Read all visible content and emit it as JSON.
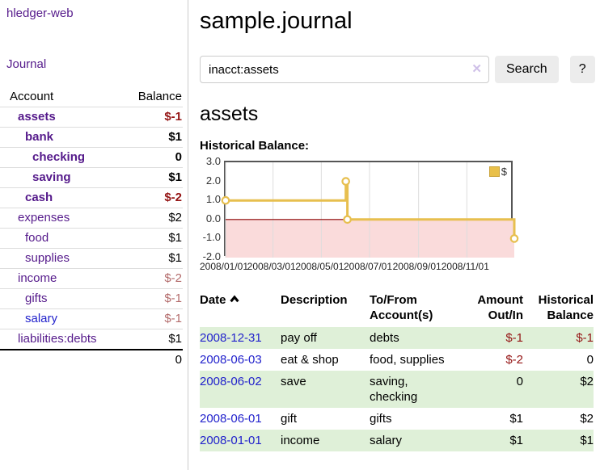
{
  "brand": "hledger-web",
  "nav": {
    "journal": "Journal"
  },
  "sidebar": {
    "header": {
      "account": "Account",
      "balance": "Balance"
    },
    "accounts": [
      {
        "name": "assets",
        "balance": "$-1"
      },
      {
        "name": "bank",
        "balance": "$1"
      },
      {
        "name": "checking",
        "balance": "0"
      },
      {
        "name": "saving",
        "balance": "$1"
      },
      {
        "name": "cash",
        "balance": "$-2"
      },
      {
        "name": "expenses",
        "balance": "$2"
      },
      {
        "name": "food",
        "balance": "$1"
      },
      {
        "name": "supplies",
        "balance": "$1"
      },
      {
        "name": "income",
        "balance": "$-2"
      },
      {
        "name": "gifts",
        "balance": "$-1"
      },
      {
        "name": "salary",
        "balance": "$-1"
      },
      {
        "name": "liabilities:debts",
        "balance": "$1"
      }
    ],
    "total": "0"
  },
  "header": {
    "title": "sample.journal"
  },
  "search": {
    "value": "inacct:assets",
    "clear_icon": "✕",
    "button": "Search",
    "help": "?"
  },
  "account_page": {
    "title": "assets",
    "chart_label": "Historical Balance:"
  },
  "chart_data": {
    "type": "line",
    "step": true,
    "title": "Historical Balance",
    "series": [
      {
        "name": "$",
        "points": [
          [
            "2008/01/01",
            1.0
          ],
          [
            "2008/06/01",
            2.0
          ],
          [
            "2008/06/03",
            0.0
          ],
          [
            "2008/12/31",
            -1.0
          ]
        ]
      }
    ],
    "ylim": [
      -2,
      3
    ],
    "yticks": [
      "3.0",
      "2.0",
      "1.0",
      "0.0",
      "-1.0",
      "-2.0"
    ],
    "xticks": [
      "2008/01/01",
      "2008/03/01",
      "2008/05/01",
      "2008/07/01",
      "2008/09/01",
      "2008/11/01"
    ],
    "legend": "$",
    "legend_position": "top-right",
    "grid": "vertical",
    "line_color": "#e7bf4f",
    "negative_fill": "#fadbdb",
    "zero_line_color": "#8b0000",
    "grid_color": "#dddddd"
  },
  "register": {
    "columns": {
      "date": "Date",
      "description": "Description",
      "accounts": "To/From Account(s)",
      "amount": "Amount Out/In",
      "balance": "Historical Balance"
    },
    "rows": [
      {
        "date": "2008-12-31",
        "description": "pay off",
        "accounts": "debts",
        "amount": "$-1",
        "balance": "$-1"
      },
      {
        "date": "2008-06-03",
        "description": "eat & shop",
        "accounts": "food, supplies",
        "amount": "$-2",
        "balance": "0"
      },
      {
        "date": "2008-06-02",
        "description": "save",
        "accounts": "saving, checking",
        "amount": "0",
        "balance": "$2"
      },
      {
        "date": "2008-06-01",
        "description": "gift",
        "accounts": "gifts",
        "amount": "$1",
        "balance": "$2"
      },
      {
        "date": "2008-01-01",
        "description": "income",
        "accounts": "salary",
        "amount": "$1",
        "balance": "$1"
      }
    ]
  },
  "colors": {
    "link_purple": "#551a8b",
    "link_blue": "#2222cc",
    "negative_strong": "#941414",
    "negative_soft": "#b36b6b",
    "row_green": "#dff0d8",
    "chart_gold": "#e7bf4f"
  }
}
